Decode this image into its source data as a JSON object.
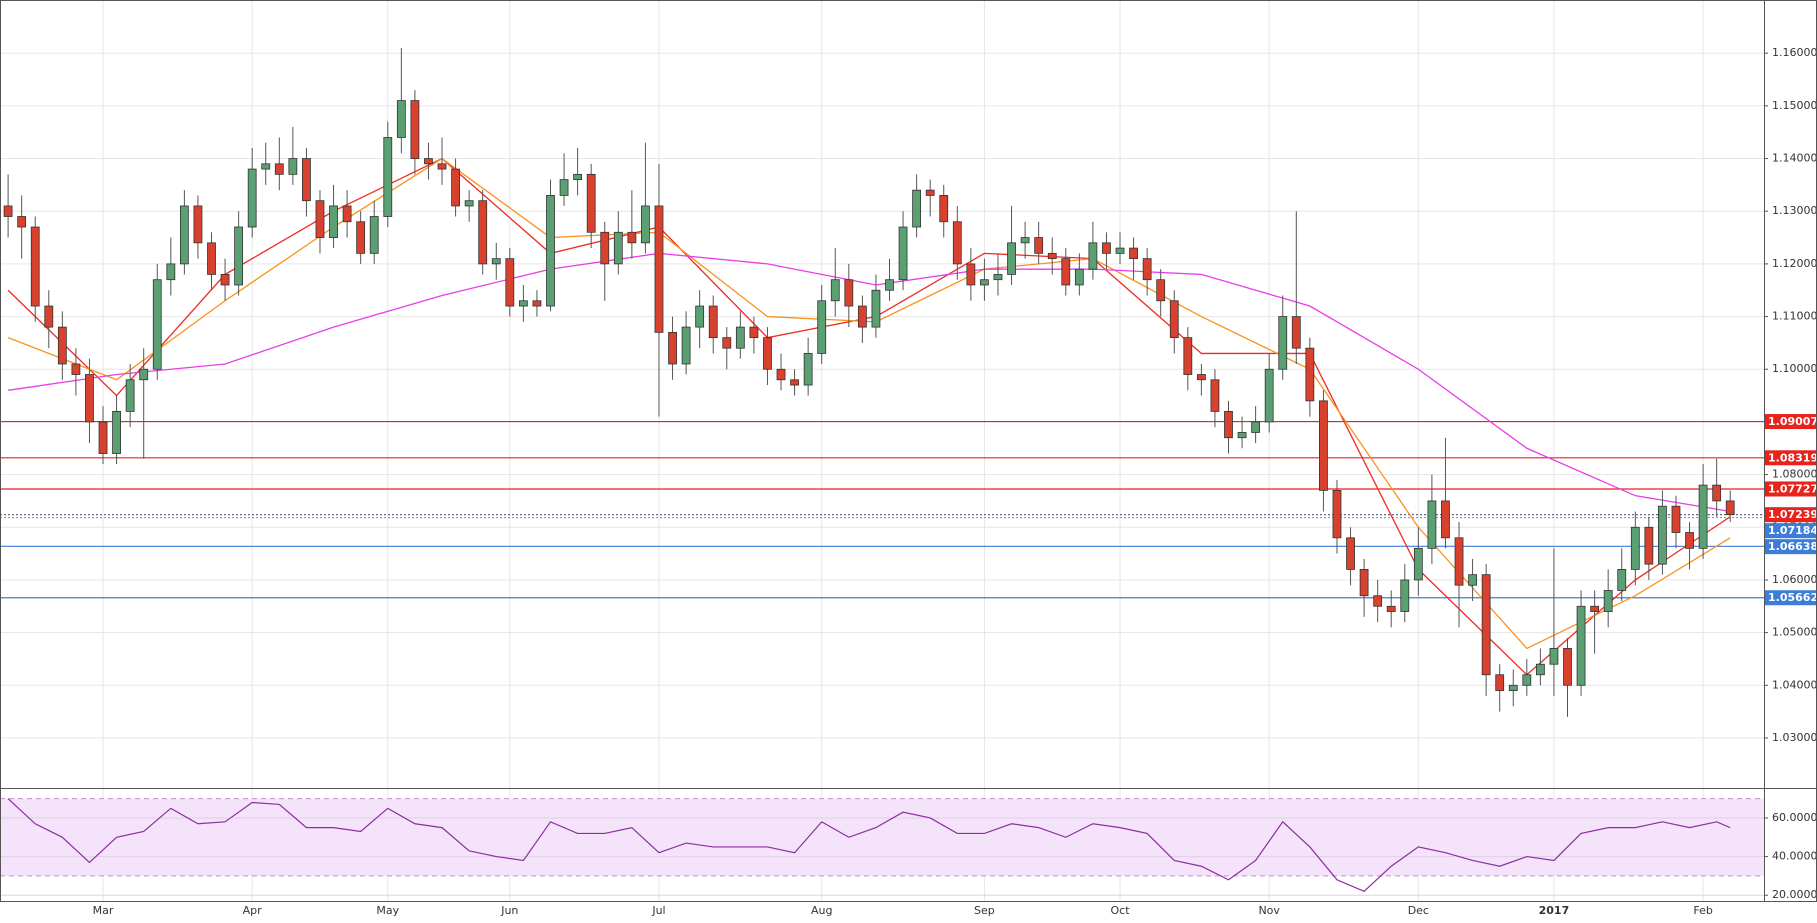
{
  "chart_data": {
    "type": "candlestick",
    "categories": [
      null,
      null,
      null,
      null,
      null,
      null,
      null,
      "Mar",
      null,
      null,
      null,
      null,
      null,
      null,
      null,
      null,
      null,
      null,
      "Apr",
      null,
      null,
      null,
      null,
      null,
      null,
      null,
      null,
      null,
      "May",
      null,
      null,
      null,
      null,
      null,
      null,
      null,
      null,
      "Jun",
      null,
      null,
      null,
      null,
      null,
      null,
      null,
      null,
      null,
      null,
      "Jul",
      null,
      null,
      null,
      null,
      null,
      null,
      null,
      null,
      null,
      null,
      null,
      "Aug",
      null,
      null,
      null,
      null,
      null,
      null,
      null,
      null,
      null,
      null,
      null,
      "Sep",
      null,
      null,
      null,
      null,
      null,
      null,
      null,
      null,
      null,
      "Oct",
      null,
      null,
      null,
      null,
      null,
      null,
      null,
      null,
      null,
      null,
      "Nov",
      null,
      null,
      null,
      null,
      null,
      null,
      null,
      null,
      null,
      null,
      "Dec",
      null,
      null,
      null,
      null,
      null,
      null,
      null,
      null,
      null,
      "2017",
      null,
      null,
      null,
      null,
      null,
      null,
      null,
      null,
      null,
      null,
      "Feb",
      null,
      null
    ],
    "open": [
      1.131,
      1.129,
      1.127,
      1.112,
      1.108,
      1.101,
      1.099,
      1.09,
      1.084,
      1.092,
      1.098,
      1.1,
      1.117,
      1.12,
      1.131,
      1.124,
      1.118,
      1.116,
      1.127,
      1.138,
      1.139,
      1.137,
      1.14,
      1.132,
      1.125,
      1.131,
      1.128,
      1.122,
      1.129,
      1.144,
      1.151,
      1.14,
      1.139,
      1.138,
      1.131,
      1.132,
      1.12,
      1.121,
      1.112,
      1.113,
      1.112,
      1.133,
      1.136,
      1.137,
      1.126,
      1.12,
      1.126,
      1.124,
      1.131,
      1.107,
      1.101,
      1.108,
      1.112,
      1.106,
      1.104,
      1.108,
      1.106,
      1.1,
      1.098,
      1.097,
      1.103,
      1.113,
      1.117,
      1.112,
      1.108,
      1.115,
      1.117,
      1.127,
      1.134,
      1.133,
      1.128,
      1.12,
      1.116,
      1.117,
      1.118,
      1.124,
      1.125,
      1.122,
      1.121,
      1.116,
      1.119,
      1.124,
      1.122,
      1.123,
      1.121,
      1.117,
      1.113,
      1.106,
      1.099,
      1.098,
      1.092,
      1.087,
      1.088,
      1.09,
      1.1,
      1.11,
      1.104,
      1.094,
      1.077,
      1.068,
      1.062,
      1.057,
      1.055,
      1.054,
      1.06,
      1.066,
      1.075,
      1.068,
      1.059,
      1.061,
      1.042,
      1.039,
      1.04,
      1.042,
      1.044,
      1.047,
      1.04,
      1.055,
      1.054,
      1.058,
      1.062,
      1.07,
      1.063,
      1.074,
      1.069,
      1.066,
      1.078,
      1.075
    ],
    "high": [
      1.137,
      1.133,
      1.129,
      1.115,
      1.111,
      1.104,
      1.102,
      1.093,
      1.095,
      1.101,
      1.104,
      1.12,
      1.125,
      1.134,
      1.133,
      1.126,
      1.121,
      1.13,
      1.142,
      1.143,
      1.144,
      1.146,
      1.142,
      1.134,
      1.135,
      1.134,
      1.13,
      1.132,
      1.147,
      1.161,
      1.153,
      1.143,
      1.144,
      1.14,
      1.134,
      1.134,
      1.124,
      1.123,
      1.116,
      1.115,
      1.136,
      1.141,
      1.142,
      1.139,
      1.128,
      1.13,
      1.134,
      1.143,
      1.139,
      1.11,
      1.111,
      1.115,
      1.114,
      1.108,
      1.111,
      1.11,
      1.108,
      1.103,
      1.1,
      1.106,
      1.116,
      1.123,
      1.12,
      1.114,
      1.118,
      1.121,
      1.13,
      1.137,
      1.136,
      1.135,
      1.131,
      1.123,
      1.121,
      1.122,
      1.131,
      1.128,
      1.128,
      1.125,
      1.123,
      1.122,
      1.128,
      1.126,
      1.126,
      1.125,
      1.123,
      1.119,
      1.115,
      1.108,
      1.101,
      1.1,
      1.094,
      1.091,
      1.093,
      1.103,
      1.114,
      1.13,
      1.106,
      1.096,
      1.079,
      1.07,
      1.064,
      1.06,
      1.058,
      1.063,
      1.07,
      1.08,
      1.087,
      1.071,
      1.064,
      1.063,
      1.044,
      1.043,
      1.045,
      1.047,
      1.066,
      1.049,
      1.058,
      1.058,
      1.062,
      1.066,
      1.073,
      1.072,
      1.077,
      1.076,
      1.071,
      1.082,
      1.083,
      1.077
    ],
    "low": [
      1.125,
      1.121,
      1.109,
      1.104,
      1.098,
      1.095,
      1.086,
      1.082,
      1.082,
      1.089,
      1.083,
      1.098,
      1.114,
      1.118,
      1.121,
      1.115,
      1.113,
      1.114,
      1.125,
      1.135,
      1.134,
      1.135,
      1.129,
      1.122,
      1.123,
      1.125,
      1.12,
      1.12,
      1.127,
      1.141,
      1.137,
      1.136,
      1.135,
      1.129,
      1.128,
      1.118,
      1.117,
      1.11,
      1.109,
      1.11,
      1.111,
      1.131,
      1.133,
      1.123,
      1.113,
      1.118,
      1.121,
      1.122,
      1.091,
      1.098,
      1.099,
      1.104,
      1.103,
      1.1,
      1.102,
      1.103,
      1.097,
      1.096,
      1.095,
      1.095,
      1.101,
      1.11,
      1.108,
      1.105,
      1.106,
      1.113,
      1.115,
      1.125,
      1.129,
      1.125,
      1.117,
      1.113,
      1.113,
      1.114,
      1.116,
      1.121,
      1.12,
      1.118,
      1.114,
      1.114,
      1.117,
      1.119,
      1.12,
      1.117,
      1.114,
      1.11,
      1.103,
      1.096,
      1.095,
      1.089,
      1.084,
      1.085,
      1.086,
      1.088,
      1.098,
      1.101,
      1.091,
      1.073,
      1.065,
      1.059,
      1.053,
      1.052,
      1.051,
      1.052,
      1.057,
      1.063,
      1.066,
      1.051,
      1.056,
      1.038,
      1.035,
      1.036,
      1.038,
      1.04,
      1.038,
      1.034,
      1.038,
      1.046,
      1.051,
      1.056,
      1.059,
      1.06,
      1.061,
      1.066,
      1.062,
      1.064,
      1.072,
      1.071
    ],
    "close": [
      1.129,
      1.127,
      1.112,
      1.108,
      1.101,
      1.099,
      1.09,
      1.084,
      1.092,
      1.098,
      1.1,
      1.117,
      1.12,
      1.131,
      1.124,
      1.118,
      1.116,
      1.127,
      1.138,
      1.139,
      1.137,
      1.14,
      1.132,
      1.125,
      1.131,
      1.128,
      1.122,
      1.129,
      1.144,
      1.151,
      1.14,
      1.139,
      1.138,
      1.131,
      1.132,
      1.12,
      1.121,
      1.112,
      1.113,
      1.112,
      1.133,
      1.136,
      1.137,
      1.126,
      1.12,
      1.126,
      1.124,
      1.131,
      1.107,
      1.101,
      1.108,
      1.112,
      1.106,
      1.104,
      1.108,
      1.106,
      1.1,
      1.098,
      1.097,
      1.103,
      1.113,
      1.117,
      1.112,
      1.108,
      1.115,
      1.117,
      1.127,
      1.134,
      1.133,
      1.128,
      1.12,
      1.116,
      1.117,
      1.118,
      1.124,
      1.125,
      1.122,
      1.121,
      1.116,
      1.119,
      1.124,
      1.122,
      1.123,
      1.121,
      1.117,
      1.113,
      1.106,
      1.099,
      1.098,
      1.092,
      1.087,
      1.088,
      1.09,
      1.1,
      1.11,
      1.104,
      1.094,
      1.077,
      1.068,
      1.062,
      1.057,
      1.055,
      1.054,
      1.06,
      1.066,
      1.075,
      1.068,
      1.059,
      1.061,
      1.042,
      1.039,
      1.04,
      1.042,
      1.044,
      1.047,
      1.04,
      1.055,
      1.054,
      1.058,
      1.062,
      1.07,
      1.063,
      1.074,
      1.069,
      1.066,
      1.078,
      1.075,
      1.0724
    ],
    "up_color": "#5aa072",
    "down_color": "#d9412f",
    "x": [
      0,
      8,
      16,
      24,
      32,
      40,
      48,
      56,
      64,
      72,
      80,
      88,
      96,
      104,
      112,
      120,
      127
    ],
    "series": [
      {
        "color": "#ee2a22",
        "values": [
          1.115,
          1.095,
          1.118,
          1.13,
          1.14,
          1.122,
          1.127,
          1.106,
          1.11,
          1.122,
          1.121,
          1.103,
          1.103,
          1.062,
          1.042,
          1.06,
          1.072
        ]
      },
      {
        "color": "#f7941d",
        "values": [
          1.106,
          1.098,
          1.113,
          1.127,
          1.14,
          1.125,
          1.126,
          1.11,
          1.109,
          1.119,
          1.121,
          1.11,
          1.1,
          1.07,
          1.047,
          1.057,
          1.068
        ]
      },
      {
        "color": "#e83ee8",
        "values": [
          1.096,
          1.099,
          1.101,
          1.108,
          1.114,
          1.119,
          1.122,
          1.12,
          1.116,
          1.119,
          1.119,
          1.118,
          1.112,
          1.1,
          1.085,
          1.076,
          1.073
        ]
      }
    ],
    "ylim": [
      1.0205,
      1.1701
    ],
    "yticks": [
      {
        "value": 1.03,
        "label": "1.03000"
      },
      {
        "value": 1.04,
        "label": "1.04000"
      },
      {
        "value": 1.05,
        "label": "1.05000"
      },
      {
        "value": 1.06,
        "label": "1.06000"
      },
      {
        "value": 1.07,
        "label": "1.07000"
      },
      {
        "value": 1.08,
        "label": "1.08000"
      },
      {
        "value": 1.09,
        "label": "1.09000"
      },
      {
        "value": 1.1,
        "label": "1.10000"
      },
      {
        "value": 1.11,
        "label": "1.11000"
      },
      {
        "value": 1.12,
        "label": "1.12000"
      },
      {
        "value": 1.13,
        "label": "1.13000"
      },
      {
        "value": 1.14,
        "label": "1.14000"
      },
      {
        "value": 1.15,
        "label": "1.15000"
      },
      {
        "value": 1.16,
        "label": "1.16000"
      }
    ],
    "grid": true,
    "levels": [
      {
        "value": 1.09007,
        "color": "#e8231b"
      },
      {
        "value": 1.08319,
        "color": "#e8231b"
      },
      {
        "value": 1.07727,
        "color": "#e8231b"
      },
      {
        "value": 1.07239,
        "color": "#e8231b",
        "line_color": "#555577",
        "dash": true
      },
      {
        "value": 1.07184,
        "color": "#3b7dd8",
        "line_color": "#7a9bd0",
        "dash": true
      },
      {
        "value": 1.06638,
        "color": "#3b7dd8"
      },
      {
        "value": 1.05662,
        "color": "#3b7dd8"
      }
    ],
    "rsi": {
      "color": "#8a2f9e",
      "band_color": "#f5e3fb",
      "x": [
        0,
        2,
        4,
        6,
        8,
        10,
        12,
        14,
        16,
        18,
        20,
        22,
        24,
        26,
        28,
        30,
        32,
        34,
        36,
        38,
        40,
        42,
        44,
        46,
        48,
        50,
        52,
        54,
        56,
        58,
        60,
        62,
        64,
        66,
        68,
        70,
        72,
        74,
        76,
        78,
        80,
        82,
        84,
        86,
        88,
        90,
        92,
        94,
        96,
        98,
        100,
        102,
        104,
        106,
        108,
        110,
        112,
        114,
        116,
        118,
        120,
        122,
        124,
        126,
        127
      ],
      "values": [
        70,
        57,
        50,
        37,
        50,
        53,
        65,
        57,
        58,
        68,
        67,
        55,
        55,
        53,
        65,
        57,
        55,
        43,
        40,
        38,
        58,
        52,
        52,
        55,
        42,
        47,
        45,
        45,
        45,
        42,
        58,
        50,
        55,
        63,
        60,
        52,
        52,
        57,
        55,
        50,
        57,
        55,
        52,
        38,
        35,
        28,
        38,
        58,
        45,
        28,
        22,
        35,
        45,
        42,
        38,
        35,
        40,
        38,
        52,
        55,
        55,
        58,
        55,
        58,
        55
      ],
      "band": [
        30,
        70
      ],
      "ylim": [
        17,
        75
      ],
      "yticks": [
        {
          "value": 20,
          "label": "20.0000"
        },
        {
          "value": 40,
          "label": "40.0000"
        },
        {
          "value": 60,
          "label": "60.0000"
        }
      ]
    }
  }
}
